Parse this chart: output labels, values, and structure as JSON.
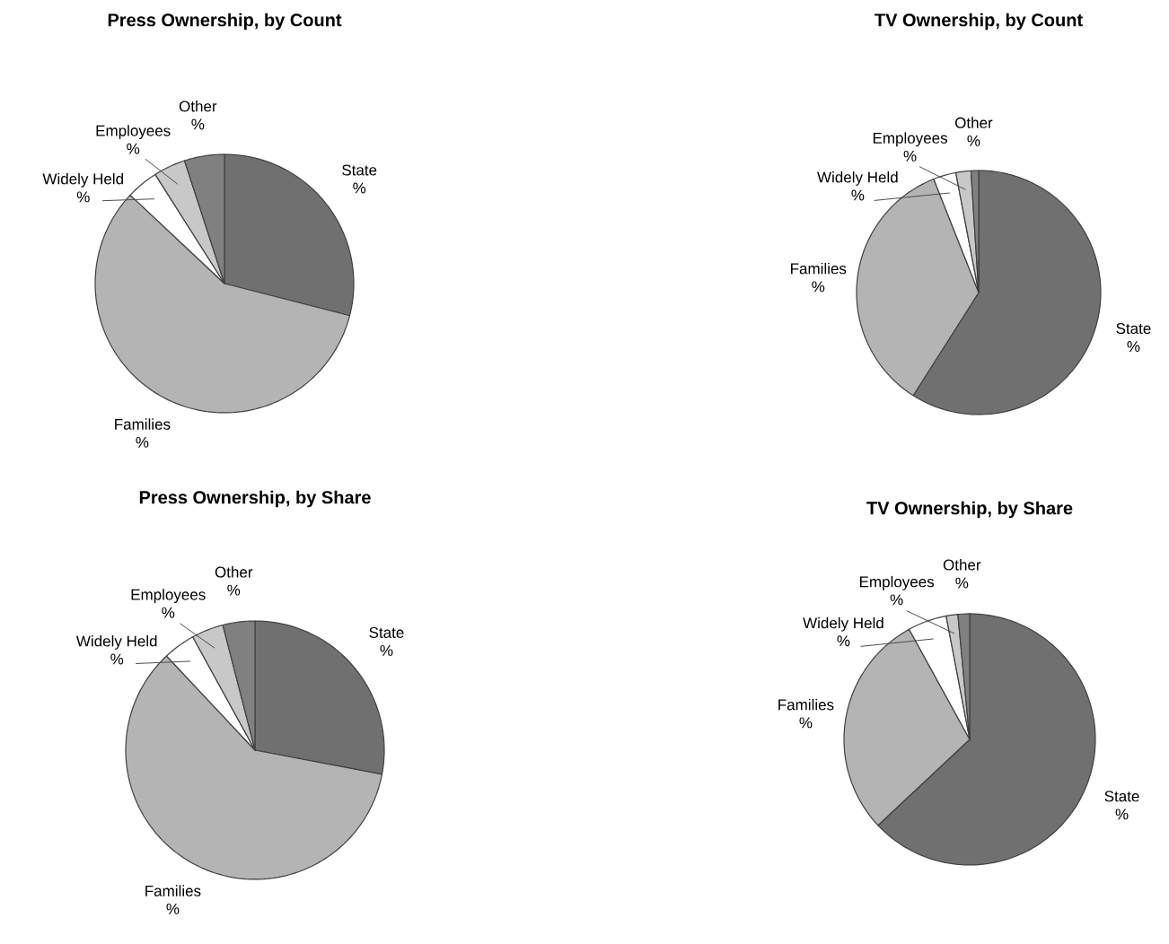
{
  "chart_data": [
    {
      "type": "pie",
      "title": "Press Ownership, by Count",
      "categories": [
        "State",
        "Families",
        "Widely Held",
        "Employees",
        "Other"
      ],
      "values": [
        29,
        58,
        4,
        4,
        5
      ],
      "colors": [
        "#707070",
        "#b4b4b4",
        "#ffffff",
        "#c8c8c8",
        "#808080"
      ],
      "value_labels": [
        "%",
        "%",
        "%",
        "%",
        "%"
      ]
    },
    {
      "type": "pie",
      "title": "TV Ownership, by Count",
      "categories": [
        "State",
        "Families",
        "Widely Held",
        "Employees",
        "Other"
      ],
      "values": [
        59,
        35,
        3,
        2,
        1
      ],
      "colors": [
        "#707070",
        "#b4b4b4",
        "#ffffff",
        "#c8c8c8",
        "#808080"
      ],
      "value_labels": [
        "%",
        "%",
        "%",
        "%",
        "%"
      ]
    },
    {
      "type": "pie",
      "title": "Press Ownership, by Share",
      "categories": [
        "State",
        "Families",
        "Widely Held",
        "Employees",
        "Other"
      ],
      "values": [
        28,
        60,
        4,
        4,
        4
      ],
      "colors": [
        "#707070",
        "#b4b4b4",
        "#ffffff",
        "#c8c8c8",
        "#808080"
      ],
      "value_labels": [
        "%",
        "%",
        "%",
        "%",
        "%"
      ]
    },
    {
      "type": "pie",
      "title": "TV Ownership, by Share",
      "categories": [
        "State",
        "Families",
        "Widely Held",
        "Employees",
        "Other"
      ],
      "values": [
        63,
        29,
        5,
        1.5,
        1.5
      ],
      "colors": [
        "#707070",
        "#b4b4b4",
        "#ffffff",
        "#c8c8c8",
        "#808080"
      ],
      "value_labels": [
        "%",
        "%",
        "%",
        "%",
        "%"
      ]
    }
  ]
}
